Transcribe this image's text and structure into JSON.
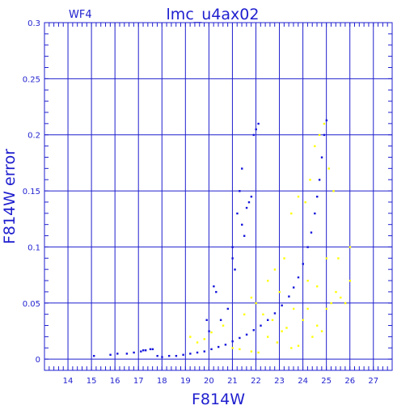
{
  "chart_data": {
    "type": "scatter",
    "chip_label": "WF4",
    "title": "lmc_u4ax02",
    "xlabel": "F814W",
    "ylabel": "F814W error",
    "xlim": [
      13,
      27.8
    ],
    "ylim": [
      -0.01,
      0.3
    ],
    "xticks": [
      14,
      15,
      16,
      17,
      18,
      19,
      20,
      21,
      22,
      23,
      24,
      25,
      26,
      27
    ],
    "xtick_labels": [
      "14",
      "15",
      "16",
      "17",
      "18",
      "19",
      "20",
      "21",
      "22",
      "23",
      "24",
      "25",
      "26",
      "27"
    ],
    "yticks": [
      0,
      0.05,
      0.1,
      0.15,
      0.2,
      0.25,
      0.3
    ],
    "ytick_labels": [
      "0",
      "0.05",
      "0.1",
      "0.15",
      "0.2",
      "0.25",
      "0.3"
    ],
    "grid": true,
    "colors": {
      "axis": "#1f1fcf",
      "main_series": "#1414dc",
      "secondary_series": "#ffff00"
    },
    "series": [
      {
        "color": "#1414dc",
        "points": [
          [
            15.1,
            0.003
          ],
          [
            15.8,
            0.004
          ],
          [
            16.1,
            0.005
          ],
          [
            16.5,
            0.005
          ],
          [
            16.8,
            0.006
          ],
          [
            17.1,
            0.007
          ],
          [
            17.2,
            0.008
          ],
          [
            17.3,
            0.008
          ],
          [
            17.5,
            0.009
          ],
          [
            17.6,
            0.009
          ],
          [
            17.8,
            0.003
          ],
          [
            18.0,
            0.002
          ],
          [
            18.3,
            0.003
          ],
          [
            18.6,
            0.003
          ],
          [
            18.9,
            0.004
          ],
          [
            19.2,
            0.005
          ],
          [
            19.5,
            0.006
          ],
          [
            19.8,
            0.007
          ],
          [
            20.1,
            0.009
          ],
          [
            20.4,
            0.011
          ],
          [
            20.7,
            0.013
          ],
          [
            21.0,
            0.016
          ],
          [
            21.3,
            0.019
          ],
          [
            21.6,
            0.022
          ],
          [
            21.9,
            0.026
          ],
          [
            22.2,
            0.03
          ],
          [
            22.5,
            0.035
          ],
          [
            22.8,
            0.041
          ],
          [
            23.1,
            0.048
          ],
          [
            23.4,
            0.056
          ],
          [
            23.6,
            0.064
          ],
          [
            23.8,
            0.073
          ],
          [
            24.0,
            0.085
          ],
          [
            24.2,
            0.1
          ],
          [
            24.35,
            0.113
          ],
          [
            24.5,
            0.13
          ],
          [
            24.6,
            0.145
          ],
          [
            24.7,
            0.16
          ],
          [
            24.8,
            0.18
          ],
          [
            24.9,
            0.2
          ],
          [
            25.0,
            0.213
          ],
          [
            20.0,
            0.025
          ],
          [
            20.3,
            0.06
          ],
          [
            20.5,
            0.035
          ],
          [
            20.8,
            0.045
          ],
          [
            21.0,
            0.1
          ],
          [
            21.0,
            0.09
          ],
          [
            21.1,
            0.08
          ],
          [
            21.2,
            0.13
          ],
          [
            21.3,
            0.15
          ],
          [
            21.4,
            0.17
          ],
          [
            21.4,
            0.12
          ],
          [
            21.5,
            0.11
          ],
          [
            21.6,
            0.135
          ],
          [
            21.7,
            0.14
          ],
          [
            21.9,
            0.2
          ],
          [
            22.0,
            0.205
          ],
          [
            22.1,
            0.21
          ],
          [
            19.9,
            0.035
          ],
          [
            20.2,
            0.065
          ],
          [
            21.8,
            0.145
          ]
        ]
      },
      {
        "color": "#ffff00",
        "points": [
          [
            19.2,
            0.02
          ],
          [
            19.5,
            0.015
          ],
          [
            19.8,
            0.018
          ],
          [
            20.1,
            0.024
          ],
          [
            20.6,
            0.03
          ],
          [
            21.0,
            0.01
          ],
          [
            21.3,
            0.009
          ],
          [
            21.5,
            0.04
          ],
          [
            21.8,
            0.007
          ],
          [
            22.1,
            0.006
          ],
          [
            22.3,
            0.04
          ],
          [
            22.5,
            0.02
          ],
          [
            22.7,
            0.035
          ],
          [
            22.9,
            0.015
          ],
          [
            23.1,
            0.025
          ],
          [
            23.3,
            0.028
          ],
          [
            23.5,
            0.01
          ],
          [
            23.6,
            0.045
          ],
          [
            23.8,
            0.012
          ],
          [
            24.0,
            0.035
          ],
          [
            24.2,
            0.045
          ],
          [
            24.4,
            0.02
          ],
          [
            24.6,
            0.03
          ],
          [
            24.8,
            0.025
          ],
          [
            25.0,
            0.045
          ],
          [
            25.2,
            0.05
          ],
          [
            25.4,
            0.06
          ],
          [
            25.6,
            0.055
          ],
          [
            25.8,
            0.05
          ],
          [
            26.0,
            0.07
          ],
          [
            23.2,
            0.09
          ],
          [
            23.5,
            0.13
          ],
          [
            23.8,
            0.145
          ],
          [
            24.1,
            0.14
          ],
          [
            24.3,
            0.16
          ],
          [
            22.5,
            0.07
          ],
          [
            22.8,
            0.08
          ],
          [
            23.0,
            0.06
          ],
          [
            24.5,
            0.19
          ],
          [
            24.7,
            0.2
          ],
          [
            24.9,
            0.21
          ],
          [
            25.1,
            0.17
          ],
          [
            25.3,
            0.15
          ],
          [
            22.0,
            0.05
          ],
          [
            21.8,
            0.055
          ],
          [
            24.2,
            0.07
          ],
          [
            24.6,
            0.065
          ],
          [
            25.0,
            0.09
          ],
          [
            25.5,
            0.09
          ],
          [
            26.0,
            0.1
          ]
        ]
      }
    ]
  }
}
